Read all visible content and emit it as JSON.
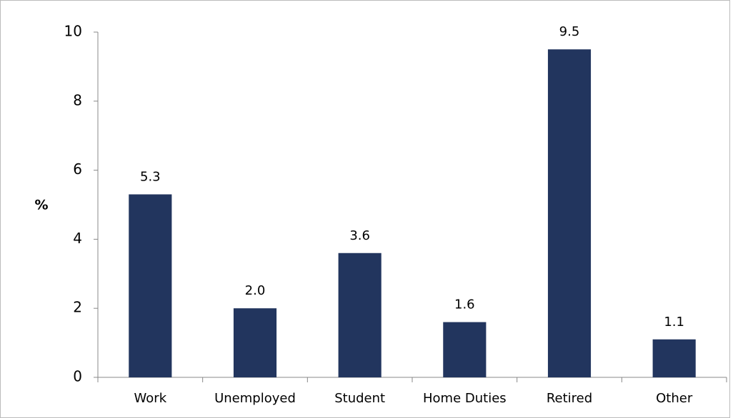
{
  "chart_data": {
    "type": "bar",
    "y_label": "%",
    "categories": [
      "Work",
      "Unemployed",
      "Student",
      "Home Duties",
      "Retired",
      "Other"
    ],
    "values": [
      5.3,
      2.0,
      3.6,
      1.6,
      9.5,
      1.1
    ],
    "value_labels": [
      "5.3",
      "2.0",
      "3.6",
      "1.6",
      "9.5",
      "1.1"
    ],
    "color": "#22355e",
    "ylim": [
      0,
      10
    ],
    "yticks": [
      0,
      2,
      4,
      6,
      8,
      10
    ],
    "grid": false
  }
}
